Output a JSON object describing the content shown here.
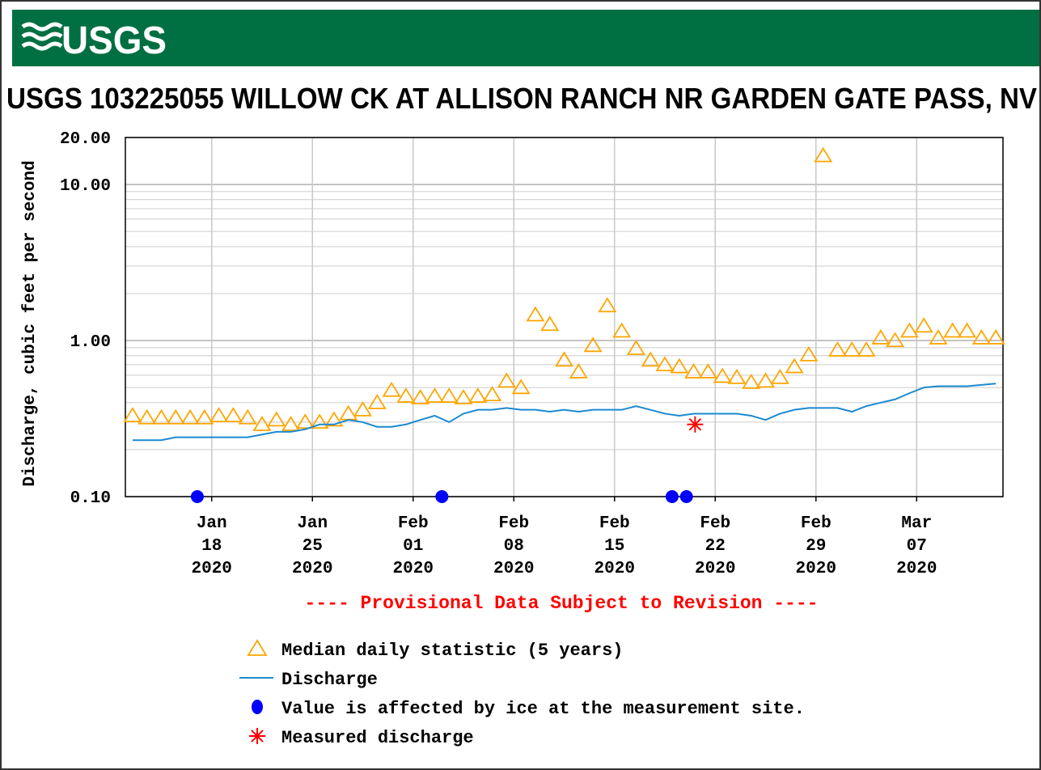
{
  "header": {
    "logo": "USGS"
  },
  "chart_data": {
    "type": "line",
    "title": "USGS 103225055 WILLOW CK AT ALLISON RANCH NR GARDEN GATE PASS, NV",
    "y_label": "Discharge, cubic feet per second",
    "annotation": "---- Provisional Data Subject to Revision ----",
    "y_log": true,
    "grid": true,
    "ylim": [
      0.1,
      20
    ],
    "yticks": [
      {
        "value": 0.1,
        "label": "0.10"
      },
      {
        "value": 1,
        "label": "1.00"
      },
      {
        "value": 10,
        "label": "10.00"
      },
      {
        "value": 20,
        "label": "20.00"
      }
    ],
    "xlim": [
      "2020-01-12",
      "2020-03-13"
    ],
    "xticks": [
      {
        "value": "2020-01-18",
        "label": [
          "Jan",
          "18",
          "2020"
        ]
      },
      {
        "value": "2020-01-25",
        "label": [
          "Jan",
          "25",
          "2020"
        ]
      },
      {
        "value": "2020-02-01",
        "label": [
          "Feb",
          "01",
          "2020"
        ]
      },
      {
        "value": "2020-02-08",
        "label": [
          "Feb",
          "08",
          "2020"
        ]
      },
      {
        "value": "2020-02-15",
        "label": [
          "Feb",
          "15",
          "2020"
        ]
      },
      {
        "value": "2020-02-22",
        "label": [
          "Feb",
          "22",
          "2020"
        ]
      },
      {
        "value": "2020-02-29",
        "label": [
          "Feb",
          "29",
          "2020"
        ]
      },
      {
        "value": "2020-03-07",
        "label": [
          "Mar",
          "07",
          "2020"
        ]
      }
    ],
    "x": [
      "2020-01-12",
      "2020-01-13",
      "2020-01-14",
      "2020-01-15",
      "2020-01-16",
      "2020-01-17",
      "2020-01-18",
      "2020-01-19",
      "2020-01-20",
      "2020-01-21",
      "2020-01-22",
      "2020-01-23",
      "2020-01-24",
      "2020-01-25",
      "2020-01-26",
      "2020-01-27",
      "2020-01-28",
      "2020-01-29",
      "2020-01-30",
      "2020-01-31",
      "2020-02-01",
      "2020-02-02",
      "2020-02-03",
      "2020-02-04",
      "2020-02-05",
      "2020-02-06",
      "2020-02-07",
      "2020-02-08",
      "2020-02-09",
      "2020-02-10",
      "2020-02-11",
      "2020-02-12",
      "2020-02-13",
      "2020-02-14",
      "2020-02-15",
      "2020-02-16",
      "2020-02-17",
      "2020-02-18",
      "2020-02-19",
      "2020-02-20",
      "2020-02-21",
      "2020-02-22",
      "2020-02-23",
      "2020-02-24",
      "2020-02-25",
      "2020-02-26",
      "2020-02-27",
      "2020-02-28",
      "2020-02-29",
      "2020-03-01",
      "2020-03-02",
      "2020-03-03",
      "2020-03-04",
      "2020-03-05",
      "2020-03-06",
      "2020-03-07",
      "2020-03-08",
      "2020-03-09",
      "2020-03-10",
      "2020-03-11",
      "2020-03-12"
    ],
    "series": [
      {
        "name": "Median daily statistic (5 years)",
        "color": "#ffa500",
        "marker": "triangle",
        "values": [
          0.33,
          0.32,
          0.32,
          0.32,
          0.32,
          0.32,
          0.33,
          0.33,
          0.32,
          0.29,
          0.31,
          0.29,
          0.3,
          0.3,
          0.31,
          0.34,
          0.36,
          0.4,
          0.48,
          0.44,
          0.43,
          0.44,
          0.44,
          0.43,
          0.44,
          0.45,
          0.55,
          0.5,
          1.46,
          1.27,
          0.75,
          0.63,
          0.93,
          1.67,
          1.15,
          0.89,
          0.75,
          0.7,
          0.68,
          0.63,
          0.63,
          0.59,
          0.58,
          0.54,
          0.55,
          0.58,
          0.68,
          0.81,
          15.3,
          0.87,
          0.87,
          0.87,
          1.04,
          1,
          1.15,
          1.24,
          1.04,
          1.15,
          1.15,
          1.04,
          1.04
        ]
      },
      {
        "name": "Discharge",
        "color": "#1b8ad0",
        "marker": "line",
        "values": [
          0.23,
          0.23,
          0.23,
          0.24,
          0.24,
          0.24,
          0.24,
          0.24,
          0.24,
          0.25,
          0.26,
          0.26,
          0.27,
          0.29,
          0.29,
          0.31,
          0.3,
          0.28,
          0.28,
          0.29,
          0.31,
          0.33,
          0.3,
          0.34,
          0.36,
          0.36,
          0.37,
          0.36,
          0.36,
          0.35,
          0.36,
          0.35,
          0.36,
          0.36,
          0.36,
          0.38,
          0.36,
          0.34,
          0.33,
          0.34,
          0.34,
          0.34,
          0.34,
          0.33,
          0.31,
          0.34,
          0.36,
          0.37,
          0.37,
          0.37,
          0.35,
          0.38,
          0.4,
          0.42,
          0.46,
          0.5,
          0.51,
          0.51,
          0.51,
          0.52,
          0.53
        ]
      },
      {
        "name": "Value is affected by ice at the measurement site.",
        "color": "#0000ff",
        "marker": "dot",
        "x": [
          "2020-01-17",
          "2020-02-03",
          "2020-02-19",
          "2020-02-20"
        ],
        "values": [
          0.1,
          0.1,
          0.1,
          0.1
        ]
      },
      {
        "name": "Measured discharge",
        "color": "#ff0000",
        "marker": "star",
        "x": [
          "2020-02-20"
        ],
        "values": [
          0.29
        ]
      }
    ]
  }
}
